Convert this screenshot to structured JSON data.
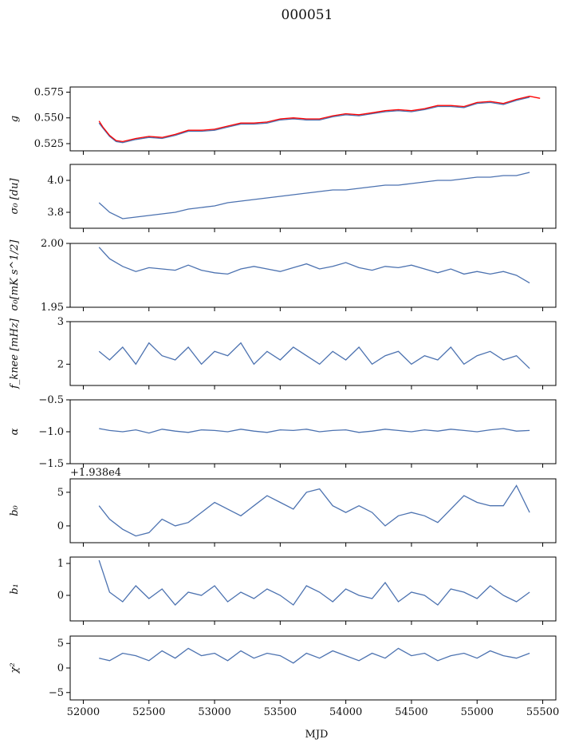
{
  "figure": {
    "title": "000051",
    "xlabel": "MJD"
  },
  "chart_data": [
    {
      "type": "line",
      "ylabel": "g",
      "xlim": [
        51900,
        55600
      ],
      "ylim": [
        0.518,
        0.58
      ],
      "yticks": [
        0.525,
        0.55,
        0.575
      ],
      "ytick_labels": [
        "0.525",
        "0.550",
        "0.575"
      ],
      "colors": [
        "#4c72b0",
        "#ff0000"
      ],
      "series": [
        {
          "color": "#4c72b0",
          "x": [
            52120,
            52150,
            52200,
            52250,
            52300,
            52400,
            52500,
            52600,
            52700,
            52800,
            52900,
            53000,
            53100,
            53200,
            53300,
            53400,
            53500,
            53600,
            53700,
            53800,
            53900,
            54000,
            54100,
            54200,
            54300,
            54400,
            54500,
            54600,
            54700,
            54800,
            54900,
            55000,
            55100,
            55200,
            55300,
            55400
          ],
          "y": [
            0.545,
            0.54,
            0.532,
            0.527,
            0.526,
            0.529,
            0.531,
            0.53,
            0.533,
            0.537,
            0.537,
            0.538,
            0.541,
            0.544,
            0.544,
            0.545,
            0.548,
            0.549,
            0.548,
            0.548,
            0.551,
            0.553,
            0.552,
            0.554,
            0.556,
            0.557,
            0.556,
            0.558,
            0.561,
            0.561,
            0.56,
            0.564,
            0.565,
            0.563,
            0.567,
            0.57
          ]
        },
        {
          "color": "#ff0000",
          "x": [
            52120,
            52150,
            52200,
            52250,
            52300,
            52400,
            52500,
            52600,
            52700,
            52800,
            52900,
            53000,
            53100,
            53200,
            53300,
            53400,
            53500,
            53600,
            53700,
            53800,
            53900,
            54000,
            54100,
            54200,
            54300,
            54400,
            54500,
            54600,
            54700,
            54800,
            54900,
            55000,
            55100,
            55200,
            55300,
            55400,
            55480
          ],
          "y": [
            0.547,
            0.541,
            0.533,
            0.528,
            0.527,
            0.53,
            0.532,
            0.531,
            0.534,
            0.538,
            0.538,
            0.539,
            0.542,
            0.545,
            0.545,
            0.546,
            0.549,
            0.55,
            0.549,
            0.549,
            0.552,
            0.554,
            0.553,
            0.555,
            0.557,
            0.558,
            0.557,
            0.559,
            0.562,
            0.562,
            0.561,
            0.565,
            0.566,
            0.564,
            0.568,
            0.571,
            0.569
          ]
        }
      ]
    },
    {
      "type": "line",
      "ylabel": "σ₀ [du]",
      "xlim": [
        51900,
        55600
      ],
      "ylim": [
        3.7,
        4.1
      ],
      "yticks": [
        3.8,
        4.0
      ],
      "ytick_labels": [
        "3.8",
        "4.0"
      ],
      "series": [
        {
          "color": "#4c72b0",
          "x": [
            52120,
            52200,
            52300,
            52400,
            52500,
            52600,
            52700,
            52800,
            52900,
            53000,
            53100,
            53200,
            53300,
            53400,
            53500,
            53600,
            53700,
            53800,
            53900,
            54000,
            54100,
            54200,
            54300,
            54400,
            54500,
            54600,
            54700,
            54800,
            54900,
            55000,
            55100,
            55200,
            55300,
            55400
          ],
          "y": [
            3.86,
            3.8,
            3.76,
            3.77,
            3.78,
            3.79,
            3.8,
            3.82,
            3.83,
            3.84,
            3.86,
            3.87,
            3.88,
            3.89,
            3.9,
            3.91,
            3.92,
            3.93,
            3.94,
            3.94,
            3.95,
            3.96,
            3.97,
            3.97,
            3.98,
            3.99,
            4.0,
            4.0,
            4.01,
            4.02,
            4.02,
            4.03,
            4.03,
            4.05
          ]
        }
      ]
    },
    {
      "type": "line",
      "ylabel": "σ₀[mK s^1/2]",
      "xlim": [
        51900,
        55600
      ],
      "ylim": [
        1.95,
        2.0
      ],
      "yticks": [
        1.95,
        2.0
      ],
      "ytick_labels": [
        "1.95",
        "2.00"
      ],
      "series": [
        {
          "color": "#4c72b0",
          "x": [
            52120,
            52200,
            52300,
            52400,
            52500,
            52600,
            52700,
            52800,
            52900,
            53000,
            53100,
            53200,
            53300,
            53400,
            53500,
            53600,
            53700,
            53800,
            53900,
            54000,
            54100,
            54200,
            54300,
            54400,
            54500,
            54600,
            54700,
            54800,
            54900,
            55000,
            55100,
            55200,
            55300,
            55400
          ],
          "y": [
            1.997,
            1.988,
            1.982,
            1.978,
            1.981,
            1.98,
            1.979,
            1.983,
            1.979,
            1.977,
            1.976,
            1.98,
            1.982,
            1.98,
            1.978,
            1.981,
            1.984,
            1.98,
            1.982,
            1.985,
            1.981,
            1.979,
            1.982,
            1.981,
            1.983,
            1.98,
            1.977,
            1.98,
            1.976,
            1.978,
            1.976,
            1.978,
            1.975,
            1.969
          ]
        }
      ]
    },
    {
      "type": "line",
      "ylabel": "f_knee [mHz]",
      "xlim": [
        51900,
        55600
      ],
      "ylim": [
        1.5,
        3.0
      ],
      "yticks": [
        2,
        3
      ],
      "ytick_labels": [
        "2",
        "3"
      ],
      "series": [
        {
          "color": "#4c72b0",
          "x": [
            52120,
            52200,
            52300,
            52400,
            52500,
            52600,
            52700,
            52800,
            52900,
            53000,
            53100,
            53200,
            53300,
            53400,
            53500,
            53600,
            53700,
            53800,
            53900,
            54000,
            54100,
            54200,
            54300,
            54400,
            54500,
            54600,
            54700,
            54800,
            54900,
            55000,
            55100,
            55200,
            55300,
            55400
          ],
          "y": [
            2.3,
            2.1,
            2.4,
            2.0,
            2.5,
            2.2,
            2.1,
            2.4,
            2.0,
            2.3,
            2.2,
            2.5,
            2.0,
            2.3,
            2.1,
            2.4,
            2.2,
            2.0,
            2.3,
            2.1,
            2.4,
            2.0,
            2.2,
            2.3,
            2.0,
            2.2,
            2.1,
            2.4,
            2.0,
            2.2,
            2.3,
            2.1,
            2.2,
            1.9
          ]
        }
      ]
    },
    {
      "type": "line",
      "ylabel": "α",
      "xlim": [
        51900,
        55600
      ],
      "ylim": [
        -1.5,
        -0.5
      ],
      "yticks": [
        -1.5,
        -1.0,
        -0.5
      ],
      "ytick_labels": [
        "−1.5",
        "−1.0",
        "−0.5"
      ],
      "series": [
        {
          "color": "#4c72b0",
          "x": [
            52120,
            52200,
            52300,
            52400,
            52500,
            52600,
            52700,
            52800,
            52900,
            53000,
            53100,
            53200,
            53300,
            53400,
            53500,
            53600,
            53700,
            53800,
            53900,
            54000,
            54100,
            54200,
            54300,
            54400,
            54500,
            54600,
            54700,
            54800,
            54900,
            55000,
            55100,
            55200,
            55300,
            55400
          ],
          "y": [
            -0.95,
            -0.98,
            -1.0,
            -0.97,
            -1.02,
            -0.96,
            -0.99,
            -1.01,
            -0.97,
            -0.98,
            -1.0,
            -0.96,
            -0.99,
            -1.01,
            -0.97,
            -0.98,
            -0.96,
            -1.0,
            -0.98,
            -0.97,
            -1.01,
            -0.99,
            -0.96,
            -0.98,
            -1.0,
            -0.97,
            -0.99,
            -0.96,
            -0.98,
            -1.0,
            -0.97,
            -0.95,
            -0.99,
            -0.98
          ]
        }
      ]
    },
    {
      "type": "line",
      "ylabel": "b₀",
      "offset_text": "+1.938e4",
      "xlim": [
        51900,
        55600
      ],
      "ylim": [
        -2.5,
        7.0
      ],
      "yticks": [
        0,
        5
      ],
      "ytick_labels": [
        "0",
        "5"
      ],
      "series": [
        {
          "color": "#4c72b0",
          "x": [
            52120,
            52200,
            52300,
            52400,
            52500,
            52600,
            52700,
            52800,
            52900,
            53000,
            53100,
            53200,
            53300,
            53400,
            53500,
            53600,
            53700,
            53800,
            53900,
            54000,
            54100,
            54200,
            54300,
            54400,
            54500,
            54600,
            54700,
            54800,
            54900,
            55000,
            55100,
            55200,
            55300,
            55400
          ],
          "y": [
            3.0,
            1.0,
            -0.5,
            -1.5,
            -1.0,
            1.0,
            0.0,
            0.5,
            2.0,
            3.5,
            2.5,
            1.5,
            3.0,
            4.5,
            3.5,
            2.5,
            5.0,
            5.5,
            3.0,
            2.0,
            3.0,
            2.0,
            0.0,
            1.5,
            2.0,
            1.5,
            0.5,
            2.5,
            4.5,
            3.5,
            3.0,
            3.0,
            6.0,
            2.0
          ]
        }
      ]
    },
    {
      "type": "line",
      "ylabel": "b₁",
      "xlim": [
        51900,
        55600
      ],
      "ylim": [
        -0.8,
        1.2
      ],
      "yticks": [
        0,
        1
      ],
      "ytick_labels": [
        "0",
        "1"
      ],
      "series": [
        {
          "color": "#4c72b0",
          "x": [
            52120,
            52200,
            52300,
            52400,
            52500,
            52600,
            52700,
            52800,
            52900,
            53000,
            53100,
            53200,
            53300,
            53400,
            53500,
            53600,
            53700,
            53800,
            53900,
            54000,
            54100,
            54200,
            54300,
            54400,
            54500,
            54600,
            54700,
            54800,
            54900,
            55000,
            55100,
            55200,
            55300,
            55400
          ],
          "y": [
            1.1,
            0.1,
            -0.2,
            0.3,
            -0.1,
            0.2,
            -0.3,
            0.1,
            0.0,
            0.3,
            -0.2,
            0.1,
            -0.1,
            0.2,
            0.0,
            -0.3,
            0.3,
            0.1,
            -0.2,
            0.2,
            0.0,
            -0.1,
            0.4,
            -0.2,
            0.1,
            0.0,
            -0.3,
            0.2,
            0.1,
            -0.1,
            0.3,
            0.0,
            -0.2,
            0.1
          ]
        }
      ]
    },
    {
      "type": "line",
      "ylabel": "χ²",
      "xlim": [
        51900,
        55600
      ],
      "ylim": [
        -6.5,
        6.5
      ],
      "yticks": [
        -5,
        0,
        5
      ],
      "ytick_labels": [
        "−5",
        "0",
        "5"
      ],
      "xticks": [
        52000,
        52500,
        53000,
        53500,
        54000,
        54500,
        55000,
        55500
      ],
      "xtick_labels": [
        "52000",
        "52500",
        "53000",
        "53500",
        "54000",
        "54500",
        "55000",
        "55500"
      ],
      "series": [
        {
          "color": "#4c72b0",
          "x": [
            52120,
            52200,
            52300,
            52400,
            52500,
            52600,
            52700,
            52800,
            52900,
            53000,
            53100,
            53200,
            53300,
            53400,
            53500,
            53600,
            53700,
            53800,
            53900,
            54000,
            54100,
            54200,
            54300,
            54400,
            54500,
            54600,
            54700,
            54800,
            54900,
            55000,
            55100,
            55200,
            55300,
            55400
          ],
          "y": [
            2.0,
            1.5,
            3.0,
            2.5,
            1.5,
            3.5,
            2.0,
            4.0,
            2.5,
            3.0,
            1.5,
            3.5,
            2.0,
            3.0,
            2.5,
            1.0,
            3.0,
            2.0,
            3.5,
            2.5,
            1.5,
            3.0,
            2.0,
            4.0,
            2.5,
            3.0,
            1.5,
            2.5,
            3.0,
            2.0,
            3.5,
            2.5,
            2.0,
            3.0
          ]
        }
      ]
    }
  ]
}
